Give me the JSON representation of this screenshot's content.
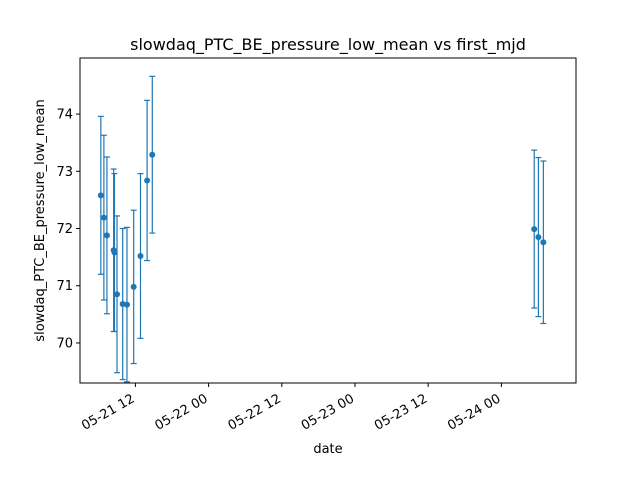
{
  "chart_data": {
    "type": "scatter",
    "title": "slowdaq_PTC_BE_pressure_low_mean vs first_mjd",
    "xlabel": "date",
    "ylabel": "slowdaq_PTC_BE_pressure_low_mean",
    "xlim": [
      "2024-05-21T02:55",
      "2024-05-24T12:14"
    ],
    "ylim": [
      69.3,
      74.98
    ],
    "grid": false,
    "legend": "none",
    "color": "#1f77b4",
    "x_ticks": [
      {
        "t": "2024-05-21T12:00",
        "label": "05-21 12"
      },
      {
        "t": "2024-05-22T00:00",
        "label": "05-22 00"
      },
      {
        "t": "2024-05-22T12:00",
        "label": "05-22 12"
      },
      {
        "t": "2024-05-23T00:00",
        "label": "05-23 00"
      },
      {
        "t": "2024-05-23T12:00",
        "label": "05-23 12"
      },
      {
        "t": "2024-05-24T00:00",
        "label": "05-24 00"
      }
    ],
    "y_ticks": [
      70,
      71,
      72,
      73,
      74
    ],
    "series": [
      {
        "x": [
          "2024-05-21T06:20",
          "2024-05-21T06:50",
          "2024-05-21T07:20",
          "2024-05-21T08:26",
          "2024-05-21T08:34",
          "2024-05-21T08:59",
          "2024-05-21T09:55",
          "2024-05-21T10:37",
          "2024-05-21T11:43",
          "2024-05-21T12:50",
          "2024-05-21T13:55",
          "2024-05-21T14:46",
          "2024-05-24T05:23",
          "2024-05-24T06:04",
          "2024-05-24T06:53"
        ],
        "y": [
          72.58,
          72.19,
          71.88,
          71.62,
          71.58,
          70.85,
          70.68,
          70.67,
          70.98,
          71.52,
          72.84,
          73.29,
          71.99,
          71.85,
          71.76
        ],
        "err": [
          1.38,
          1.44,
          1.37,
          1.42,
          1.38,
          1.37,
          1.32,
          1.35,
          1.34,
          1.44,
          1.4,
          1.37,
          1.38,
          1.39,
          1.42
        ]
      }
    ]
  }
}
